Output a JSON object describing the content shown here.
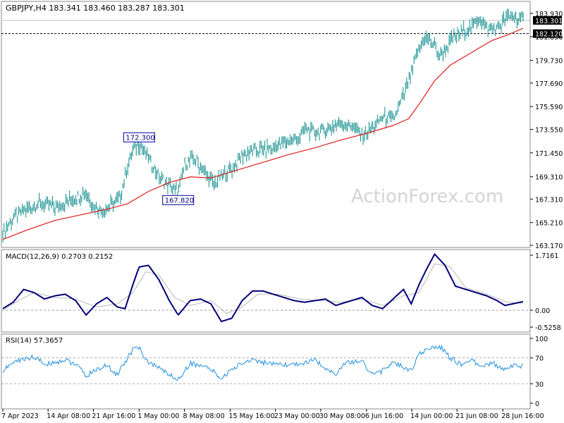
{
  "header": {
    "symbol_line": "GBPJPY,H4  183.341 183.460 183.287 183.301",
    "macd_label": "MACD(12,26,9) 0.2703 0.2152",
    "rsi_label": "RSI(14) 57.3657"
  },
  "watermark": "ActionForex.com",
  "colors": {
    "price_bars": "#0b8a8a",
    "moving_average": "#e01b1b",
    "macd_line": "#00007a",
    "signal_line": "#b8b8b8",
    "rsi_line": "#1e8fe0",
    "grid": "#888888",
    "annotation_border": "#0000a0"
  },
  "chart_data": [
    {
      "type": "ohlc",
      "panel": "price",
      "y_ticks": [
        "183.930",
        "181.850",
        "179.730",
        "177.690",
        "175.590",
        "173.550",
        "171.450",
        "169.310",
        "167.310",
        "165.210",
        "163.170"
      ],
      "y_tick_values": [
        183.93,
        181.85,
        179.73,
        177.69,
        175.59,
        173.55,
        171.45,
        169.31,
        167.31,
        165.21,
        163.17
      ],
      "ylim": [
        163.17,
        183.93
      ],
      "current_price": "183.301",
      "current_price_value": 183.301,
      "level_line": "182.120",
      "level_line_value": 182.12,
      "annotations": [
        {
          "text": "172.300",
          "x": 0.262,
          "value": 172.3,
          "anchor": "above"
        },
        {
          "text": "167.820",
          "x": 0.337,
          "value": 167.82,
          "anchor": "below"
        }
      ],
      "price_path": [
        [
          0.0,
          164.4
        ],
        [
          0.02,
          165.6
        ],
        [
          0.04,
          166.3
        ],
        [
          0.07,
          166.9
        ],
        [
          0.1,
          166.6
        ],
        [
          0.13,
          167.2
        ],
        [
          0.16,
          167.9
        ],
        [
          0.175,
          166.6
        ],
        [
          0.19,
          166.2
        ],
        [
          0.215,
          167.0
        ],
        [
          0.225,
          167.4
        ],
        [
          0.24,
          170.2
        ],
        [
          0.25,
          171.6
        ],
        [
          0.262,
          172.3
        ],
        [
          0.28,
          171.0
        ],
        [
          0.3,
          169.3
        ],
        [
          0.32,
          168.5
        ],
        [
          0.337,
          167.82
        ],
        [
          0.35,
          170.5
        ],
        [
          0.37,
          170.9
        ],
        [
          0.39,
          169.6
        ],
        [
          0.405,
          168.6
        ],
        [
          0.42,
          169.4
        ],
        [
          0.44,
          170.0
        ],
        [
          0.46,
          171.2
        ],
        [
          0.48,
          171.6
        ],
        [
          0.52,
          171.9
        ],
        [
          0.545,
          172.5
        ],
        [
          0.57,
          172.8
        ],
        [
          0.58,
          173.6
        ],
        [
          0.6,
          173.3
        ],
        [
          0.62,
          173.5
        ],
        [
          0.65,
          174.1
        ],
        [
          0.67,
          173.9
        ],
        [
          0.69,
          173.0
        ],
        [
          0.71,
          173.6
        ],
        [
          0.73,
          174.7
        ],
        [
          0.75,
          174.4
        ],
        [
          0.765,
          175.9
        ],
        [
          0.775,
          177.2
        ],
        [
          0.785,
          178.4
        ],
        [
          0.795,
          180.2
        ],
        [
          0.81,
          181.8
        ],
        [
          0.825,
          181.3
        ],
        [
          0.84,
          180.1
        ],
        [
          0.86,
          181.4
        ],
        [
          0.88,
          182.2
        ],
        [
          0.9,
          182.6
        ],
        [
          0.915,
          183.6
        ],
        [
          0.93,
          182.5
        ],
        [
          0.95,
          182.5
        ],
        [
          0.965,
          183.4
        ],
        [
          0.98,
          183.7
        ],
        [
          1.0,
          183.3
        ]
      ],
      "moving_average_path": [
        [
          0.0,
          163.7
        ],
        [
          0.05,
          164.6
        ],
        [
          0.1,
          165.4
        ],
        [
          0.15,
          165.9
        ],
        [
          0.2,
          166.4
        ],
        [
          0.24,
          166.9
        ],
        [
          0.28,
          168.0
        ],
        [
          0.32,
          168.8
        ],
        [
          0.36,
          169.3
        ],
        [
          0.4,
          169.2
        ],
        [
          0.45,
          169.9
        ],
        [
          0.5,
          170.6
        ],
        [
          0.55,
          171.3
        ],
        [
          0.6,
          171.9
        ],
        [
          0.65,
          172.6
        ],
        [
          0.7,
          173.2
        ],
        [
          0.75,
          173.9
        ],
        [
          0.78,
          174.5
        ],
        [
          0.8,
          175.8
        ],
        [
          0.83,
          177.9
        ],
        [
          0.86,
          179.3
        ],
        [
          0.9,
          180.4
        ],
        [
          0.94,
          181.5
        ],
        [
          0.97,
          182.0
        ],
        [
          1.0,
          182.6
        ]
      ]
    },
    {
      "type": "line",
      "panel": "macd",
      "y_ticks": [
        "1.7161",
        "0.00",
        "-0.5258"
      ],
      "y_tick_values": [
        1.7161,
        0.0,
        -0.5258
      ],
      "ylim": [
        -0.5258,
        1.7161
      ],
      "series": [
        {
          "role": "macd",
          "values": [
            [
              0.0,
              0.05
            ],
            [
              0.02,
              0.25
            ],
            [
              0.04,
              0.65
            ],
            [
              0.06,
              0.55
            ],
            [
              0.08,
              0.35
            ],
            [
              0.1,
              0.45
            ],
            [
              0.12,
              0.5
            ],
            [
              0.14,
              0.3
            ],
            [
              0.16,
              -0.15
            ],
            [
              0.18,
              0.2
            ],
            [
              0.2,
              0.4
            ],
            [
              0.22,
              0.1
            ],
            [
              0.235,
              0.05
            ],
            [
              0.25,
              0.8
            ],
            [
              0.262,
              1.35
            ],
            [
              0.28,
              1.4
            ],
            [
              0.3,
              0.95
            ],
            [
              0.32,
              0.3
            ],
            [
              0.337,
              -0.15
            ],
            [
              0.36,
              0.3
            ],
            [
              0.38,
              0.35
            ],
            [
              0.4,
              0.2
            ],
            [
              0.42,
              -0.35
            ],
            [
              0.44,
              -0.25
            ],
            [
              0.46,
              0.3
            ],
            [
              0.48,
              0.6
            ],
            [
              0.5,
              0.6
            ],
            [
              0.53,
              0.45
            ],
            [
              0.56,
              0.3
            ],
            [
              0.58,
              0.25
            ],
            [
              0.6,
              0.3
            ],
            [
              0.62,
              0.35
            ],
            [
              0.64,
              0.15
            ],
            [
              0.66,
              0.25
            ],
            [
              0.69,
              0.4
            ],
            [
              0.71,
              0.15
            ],
            [
              0.73,
              0.05
            ],
            [
              0.75,
              0.35
            ],
            [
              0.77,
              0.65
            ],
            [
              0.785,
              0.2
            ],
            [
              0.8,
              0.8
            ],
            [
              0.815,
              1.3
            ],
            [
              0.83,
              1.75
            ],
            [
              0.85,
              1.4
            ],
            [
              0.87,
              0.75
            ],
            [
              0.89,
              0.65
            ],
            [
              0.91,
              0.55
            ],
            [
              0.93,
              0.45
            ],
            [
              0.95,
              0.3
            ],
            [
              0.965,
              0.15
            ],
            [
              0.98,
              0.2
            ],
            [
              1.0,
              0.27
            ]
          ]
        },
        {
          "role": "signal",
          "values": [
            [
              0.0,
              0.0
            ],
            [
              0.03,
              0.3
            ],
            [
              0.06,
              0.55
            ],
            [
              0.1,
              0.4
            ],
            [
              0.14,
              0.35
            ],
            [
              0.18,
              0.1
            ],
            [
              0.22,
              0.2
            ],
            [
              0.25,
              0.55
            ],
            [
              0.275,
              1.2
            ],
            [
              0.3,
              1.1
            ],
            [
              0.33,
              0.4
            ],
            [
              0.36,
              0.15
            ],
            [
              0.4,
              0.3
            ],
            [
              0.43,
              -0.1
            ],
            [
              0.46,
              0.1
            ],
            [
              0.49,
              0.5
            ],
            [
              0.53,
              0.5
            ],
            [
              0.57,
              0.35
            ],
            [
              0.61,
              0.3
            ],
            [
              0.65,
              0.25
            ],
            [
              0.69,
              0.35
            ],
            [
              0.73,
              0.15
            ],
            [
              0.77,
              0.45
            ],
            [
              0.8,
              0.55
            ],
            [
              0.83,
              1.45
            ],
            [
              0.86,
              1.35
            ],
            [
              0.89,
              0.7
            ],
            [
              0.93,
              0.5
            ],
            [
              0.97,
              0.25
            ],
            [
              1.0,
              0.22
            ]
          ]
        }
      ]
    },
    {
      "type": "line",
      "panel": "rsi",
      "y_ticks": [
        "100",
        "70",
        "30",
        "0"
      ],
      "y_tick_values": [
        100,
        70,
        30,
        0
      ],
      "ylim": [
        0,
        100
      ],
      "levels": [
        70,
        30
      ],
      "values": [
        [
          0.0,
          50
        ],
        [
          0.02,
          63
        ],
        [
          0.04,
          68
        ],
        [
          0.06,
          72
        ],
        [
          0.08,
          60
        ],
        [
          0.1,
          63
        ],
        [
          0.12,
          67
        ],
        [
          0.14,
          60
        ],
        [
          0.16,
          42
        ],
        [
          0.18,
          52
        ],
        [
          0.2,
          58
        ],
        [
          0.22,
          44
        ],
        [
          0.24,
          70
        ],
        [
          0.255,
          88
        ],
        [
          0.265,
          82
        ],
        [
          0.28,
          62
        ],
        [
          0.3,
          55
        ],
        [
          0.32,
          44
        ],
        [
          0.337,
          36
        ],
        [
          0.36,
          62
        ],
        [
          0.38,
          58
        ],
        [
          0.4,
          52
        ],
        [
          0.42,
          38
        ],
        [
          0.44,
          52
        ],
        [
          0.46,
          62
        ],
        [
          0.48,
          68
        ],
        [
          0.5,
          63
        ],
        [
          0.53,
          58
        ],
        [
          0.56,
          60
        ],
        [
          0.58,
          62
        ],
        [
          0.6,
          66
        ],
        [
          0.62,
          55
        ],
        [
          0.64,
          45
        ],
        [
          0.66,
          62
        ],
        [
          0.69,
          66
        ],
        [
          0.71,
          44
        ],
        [
          0.73,
          50
        ],
        [
          0.75,
          63
        ],
        [
          0.77,
          55
        ],
        [
          0.785,
          50
        ],
        [
          0.8,
          75
        ],
        [
          0.82,
          85
        ],
        [
          0.84,
          88
        ],
        [
          0.86,
          70
        ],
        [
          0.88,
          60
        ],
        [
          0.9,
          66
        ],
        [
          0.92,
          58
        ],
        [
          0.94,
          62
        ],
        [
          0.96,
          54
        ],
        [
          0.98,
          58
        ],
        [
          1.0,
          57.37
        ]
      ]
    }
  ],
  "x_axis": {
    "tick_labels": [
      {
        "text": "7 Apr 2023",
        "x": 0.0
      },
      {
        "text": "14 Apr 08:00",
        "x": 0.087
      },
      {
        "text": "21 Apr 16:00",
        "x": 0.174
      },
      {
        "text": "1 May 00:00",
        "x": 0.262
      },
      {
        "text": "8 May 08:00",
        "x": 0.349
      },
      {
        "text": "15 May 16:00",
        "x": 0.437
      },
      {
        "text": "23 May 00:00",
        "x": 0.524
      },
      {
        "text": "30 May 08:00",
        "x": 0.611
      },
      {
        "text": "6 Jun 16:00",
        "x": 0.699
      },
      {
        "text": "14 Jun 00:00",
        "x": 0.786
      },
      {
        "text": "21 Jun 08:00",
        "x": 0.873
      },
      {
        "text": "28 Jun 16:00",
        "x": 0.961
      }
    ]
  }
}
